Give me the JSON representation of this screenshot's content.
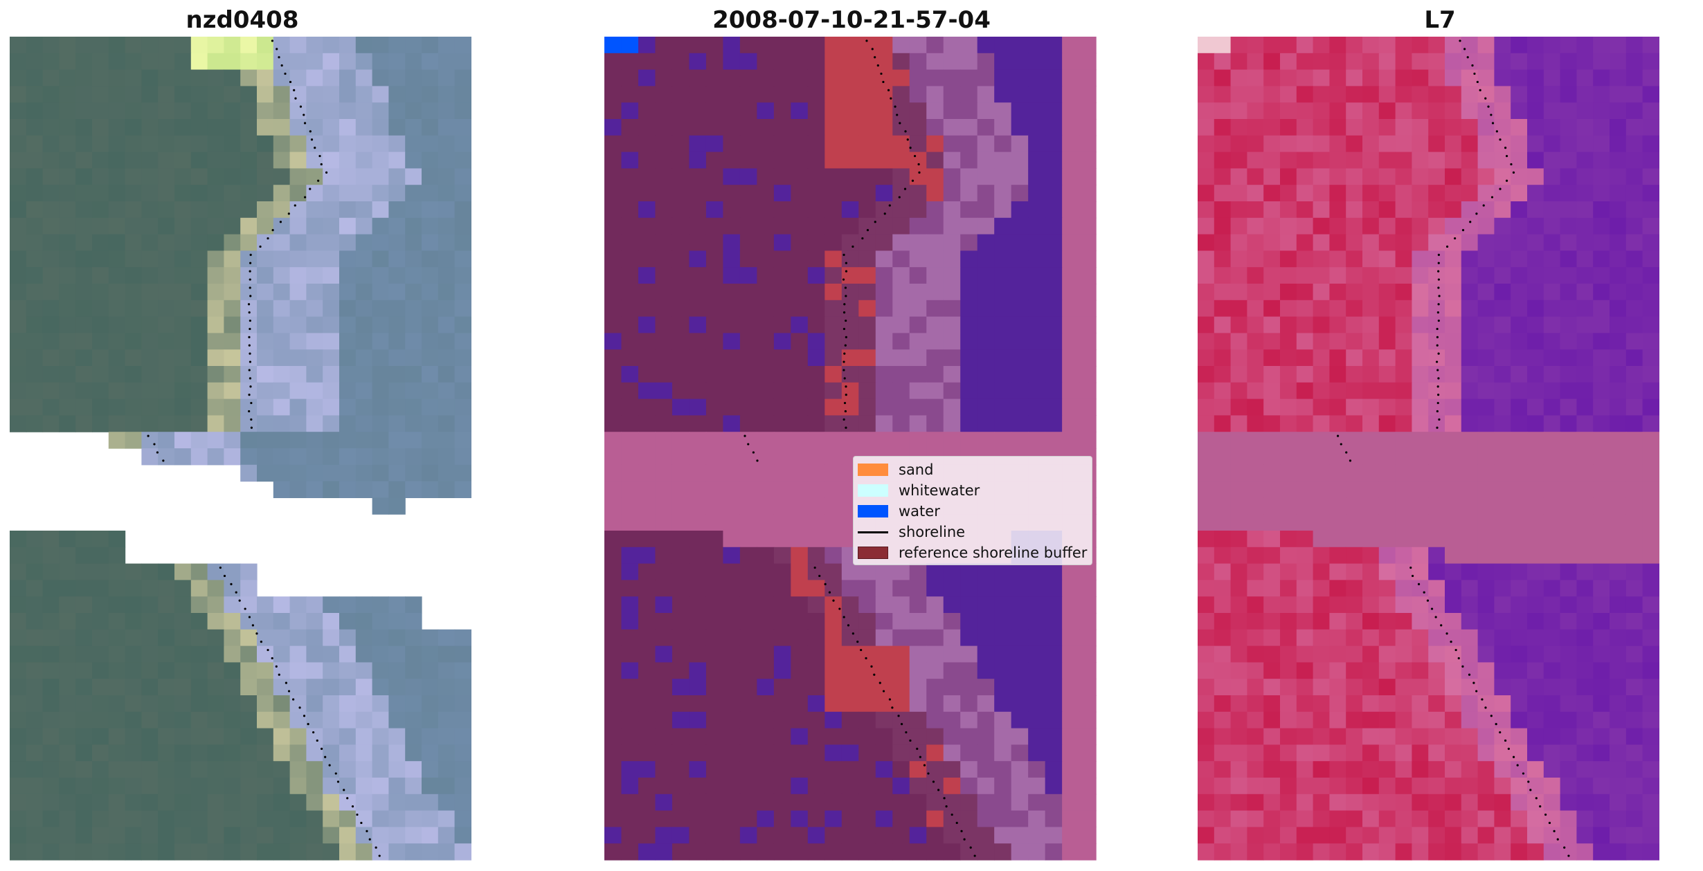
{
  "panels": [
    {
      "title": "nzd0408",
      "colormap": "rgb"
    },
    {
      "title": "2008-07-10-21-57-04",
      "colormap": "classes"
    },
    {
      "title": "L7",
      "colormap": "index"
    }
  ],
  "legend": {
    "items": [
      {
        "label": "sand",
        "color": "#ff8c3c",
        "kind": "patch"
      },
      {
        "label": "whitewater",
        "color": "#ccffff",
        "kind": "patch"
      },
      {
        "label": "water",
        "color": "#0055ff",
        "kind": "patch"
      },
      {
        "label": "shoreline",
        "color": "#000000",
        "kind": "line"
      },
      {
        "label": "reference shoreline buffer",
        "color": "#8b2c34",
        "kind": "patch"
      }
    ]
  },
  "colors": {
    "nodata_pink": "#b95e94",
    "class_dark": "#722a5c",
    "class_water": "#54239b",
    "class_light": "#a56aa8",
    "class_buffer": "#c0404e",
    "index_red": "#cc2255",
    "index_purple": "#6a1fa5",
    "shoreline": "#000000"
  }
}
